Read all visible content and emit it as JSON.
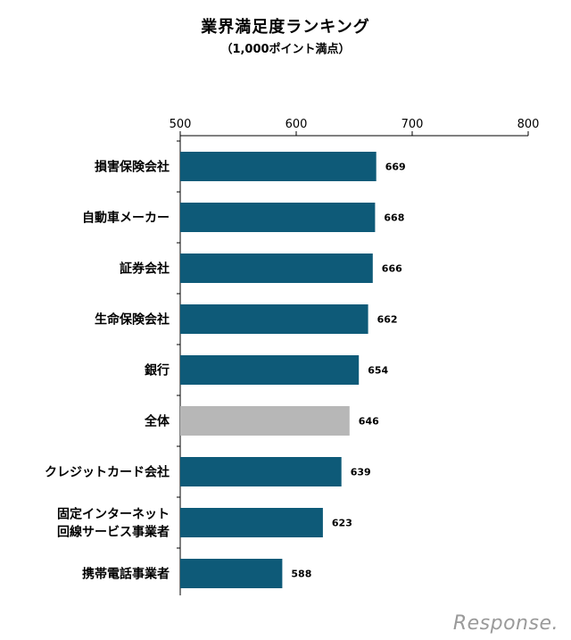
{
  "chart_data": {
    "type": "bar",
    "orientation": "horizontal",
    "title": "業界満足度ランキング",
    "subtitle": "（1,000ポイント満点）",
    "categories": [
      [
        "損害保険会社"
      ],
      [
        "自動車メーカー"
      ],
      [
        "証券会社"
      ],
      [
        "生命保険会社"
      ],
      [
        "銀行"
      ],
      [
        "全体"
      ],
      [
        "クレジットカード会社"
      ],
      [
        "固定インターネット",
        "回線サービス事業者"
      ],
      [
        "携帯電話事業者"
      ]
    ],
    "values": [
      669,
      668,
      666,
      662,
      654,
      646,
      639,
      623,
      588
    ],
    "highlight_index": 5,
    "xlim": [
      500,
      800
    ],
    "xticks": [
      500,
      600,
      700,
      800
    ],
    "grid": false,
    "legend": "none"
  },
  "colors": {
    "bar": "#0e5a78",
    "highlight_bar": "#b7b7b7",
    "axis": "#000000"
  },
  "watermark": "Response."
}
